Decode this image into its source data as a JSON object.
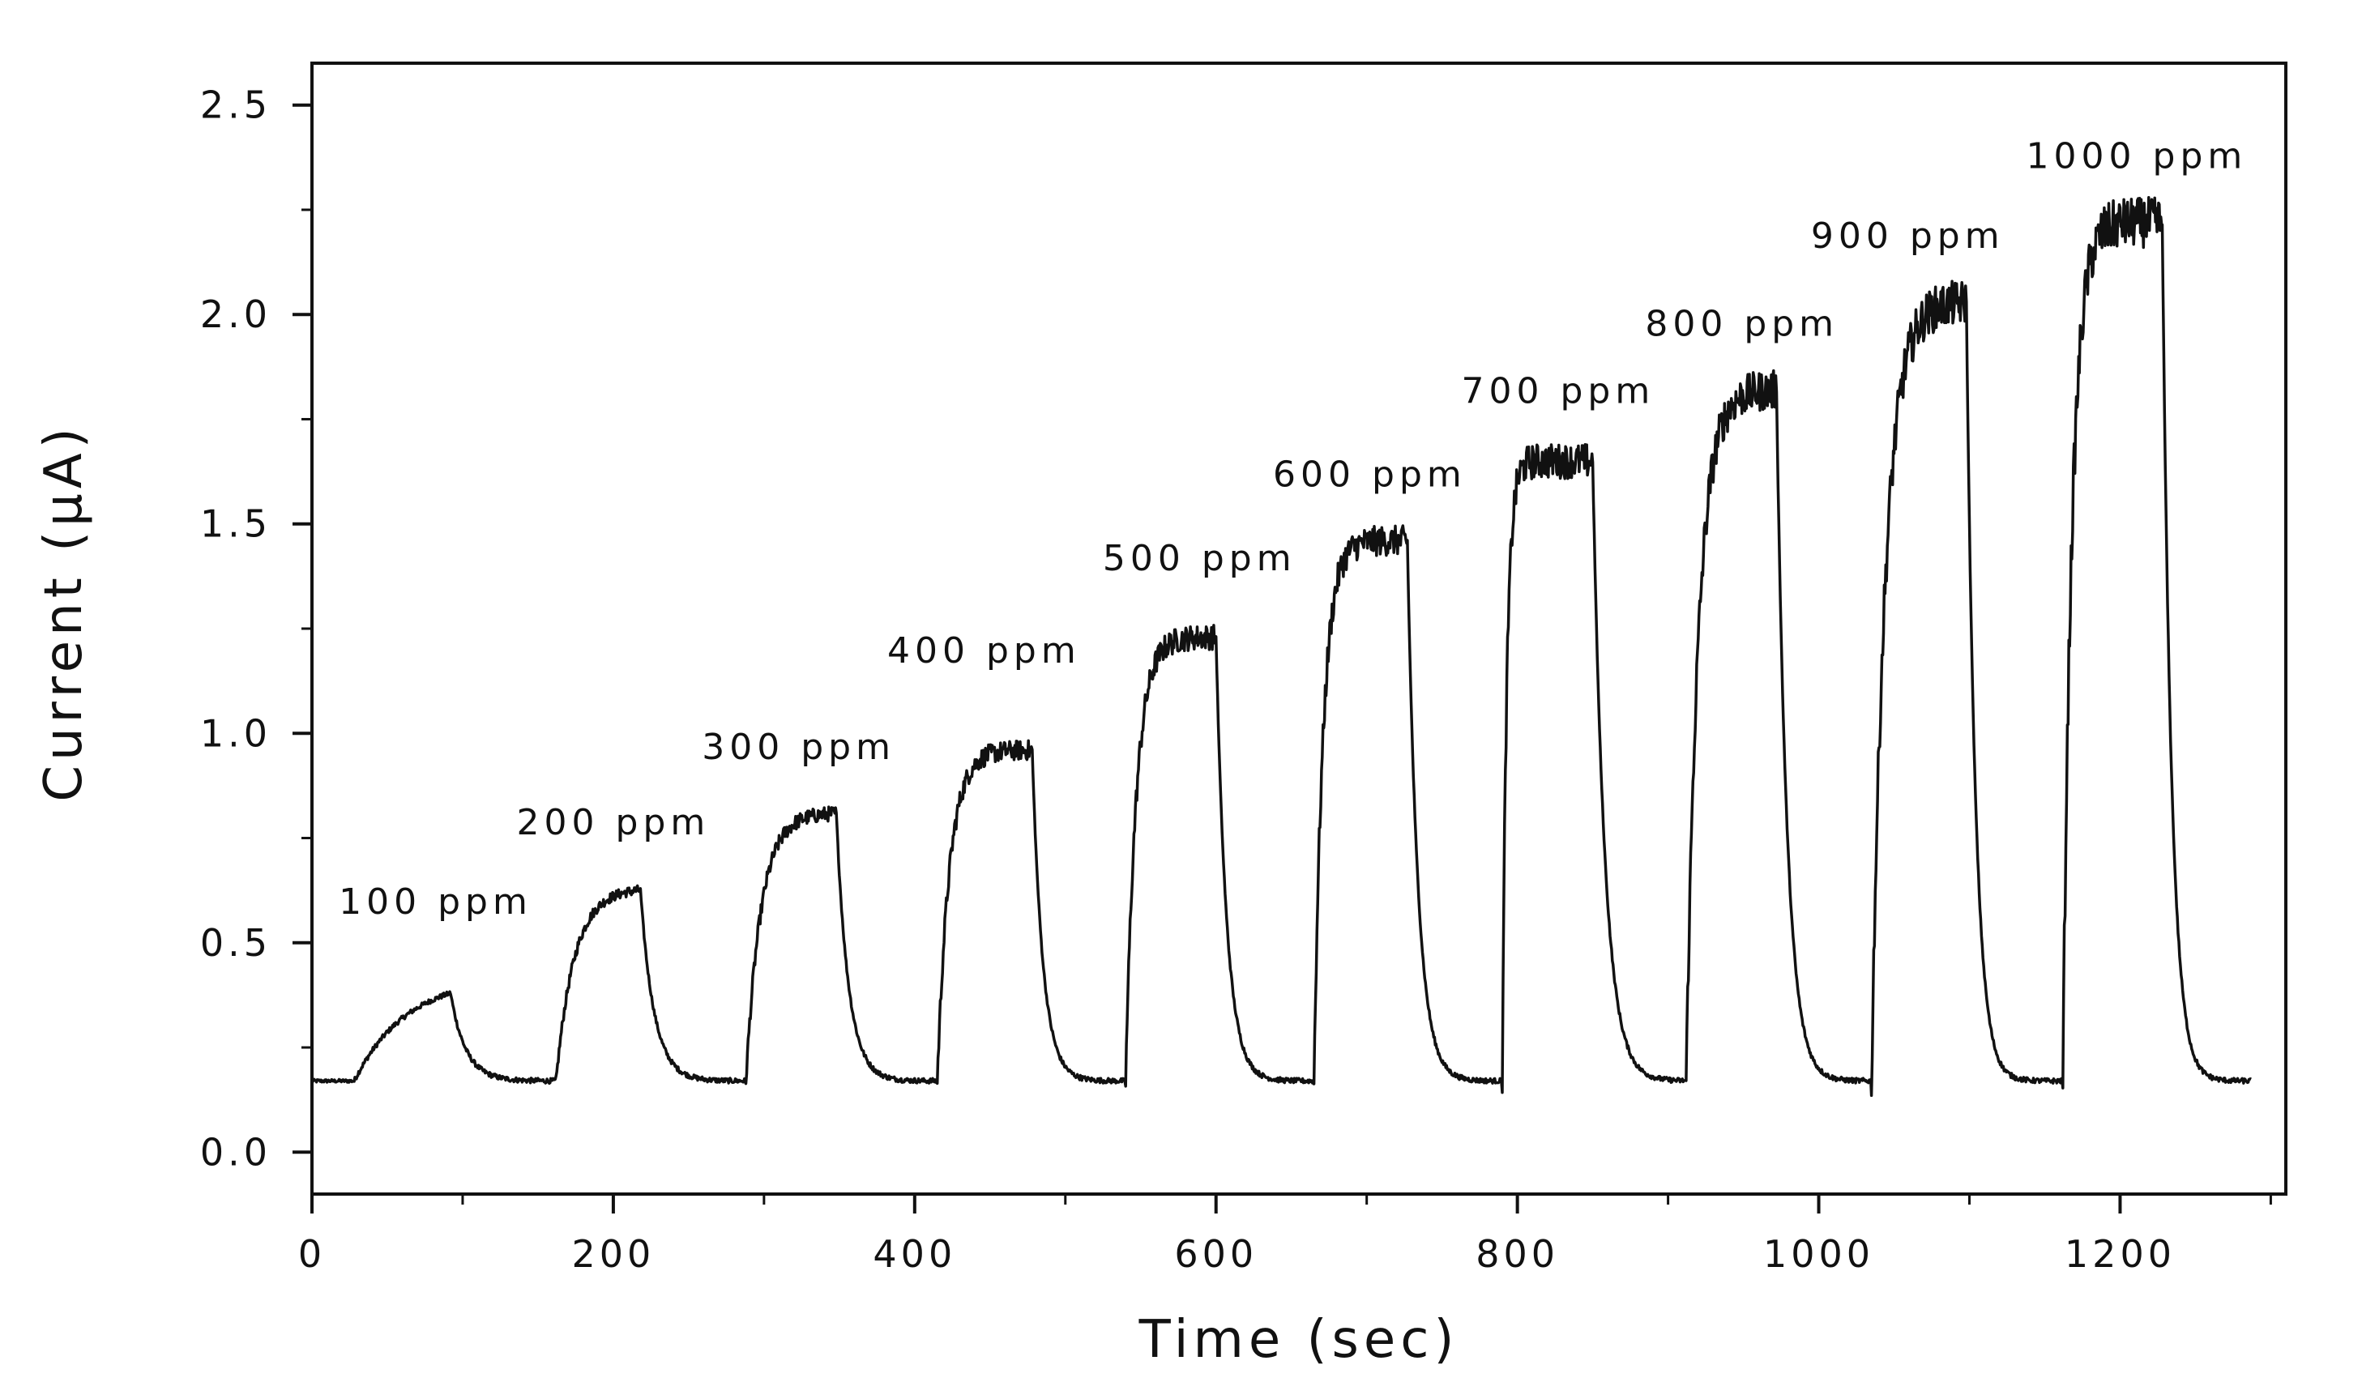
{
  "chart_data": {
    "type": "line",
    "title": "",
    "xlabel": "Time (sec)",
    "ylabel": "Current (µA)",
    "xlim": [
      0,
      1310
    ],
    "ylim": [
      -0.1,
      2.6
    ],
    "xticks": [
      0,
      200,
      400,
      600,
      800,
      1000,
      1200
    ],
    "xtick_labels": [
      "0",
      "200",
      "400",
      "600",
      "800",
      "1000",
      "1200"
    ],
    "x_minor_ticks": [
      100,
      300,
      500,
      700,
      900,
      1100,
      1300
    ],
    "yticks": [
      0.0,
      0.5,
      1.0,
      1.5,
      2.0,
      2.5
    ],
    "ytick_labels": [
      "0.0",
      "0.5",
      "1.0",
      "1.5",
      "2.0",
      "2.5"
    ],
    "y_minor_ticks": [
      0.25,
      0.75,
      1.25,
      1.75,
      2.25
    ],
    "grid": false,
    "legend": "none",
    "baseline": 0.17,
    "end_time": 1287,
    "pulses": [
      {
        "label": "100 ppm",
        "on": 28,
        "off": 92,
        "peak": 0.42,
        "rise_tau": 35,
        "fall_tau": 10
      },
      {
        "label": "200 ppm",
        "on": 162,
        "off": 218,
        "peak": 0.63,
        "rise_tau": 12,
        "fall_tau": 9
      },
      {
        "label": "300 ppm",
        "on": 288,
        "off": 348,
        "peak": 0.81,
        "rise_tau": 10,
        "fall_tau": 8
      },
      {
        "label": "400 ppm",
        "on": 415,
        "off": 478,
        "peak": 0.96,
        "rise_tau": 8,
        "fall_tau": 7
      },
      {
        "label": "500 ppm",
        "on": 540,
        "off": 600,
        "peak": 1.23,
        "rise_tau": 7,
        "fall_tau": 7
      },
      {
        "label": "600 ppm",
        "on": 665,
        "off": 727,
        "peak": 1.46,
        "rise_tau": 6,
        "fall_tau": 7
      },
      {
        "label": "700 ppm",
        "on": 790,
        "off": 850,
        "peak": 1.65,
        "rise_tau": 3,
        "fall_tau": 8
      },
      {
        "label": "800 ppm",
        "on": 912,
        "off": 972,
        "peak": 1.82,
        "rise_tau": 8,
        "fall_tau": 7
      },
      {
        "label": "900 ppm",
        "on": 1035,
        "off": 1098,
        "peak": 2.03,
        "rise_tau": 9,
        "fall_tau": 6
      },
      {
        "label": "1000 ppm",
        "on": 1162,
        "off": 1228,
        "peak": 2.22,
        "rise_tau": 6,
        "fall_tau": 6
      }
    ],
    "annotations": [
      {
        "text": "100 ppm",
        "x": 82,
        "y": 0.6
      },
      {
        "text": "200 ppm",
        "x": 200,
        "y": 0.79
      },
      {
        "text": "300 ppm",
        "x": 323,
        "y": 0.97
      },
      {
        "text": "400 ppm",
        "x": 446,
        "y": 1.2
      },
      {
        "text": "500 ppm",
        "x": 589,
        "y": 1.42
      },
      {
        "text": "600 ppm",
        "x": 702,
        "y": 1.62
      },
      {
        "text": "700 ppm",
        "x": 827,
        "y": 1.82
      },
      {
        "text": "800 ppm",
        "x": 949,
        "y": 1.98
      },
      {
        "text": "900 ppm",
        "x": 1059,
        "y": 2.19
      },
      {
        "text": "1000 ppm",
        "x": 1211,
        "y": 2.38
      }
    ]
  },
  "colors": {
    "line": "#111111",
    "axis": "#111111",
    "background": "#ffffff"
  }
}
